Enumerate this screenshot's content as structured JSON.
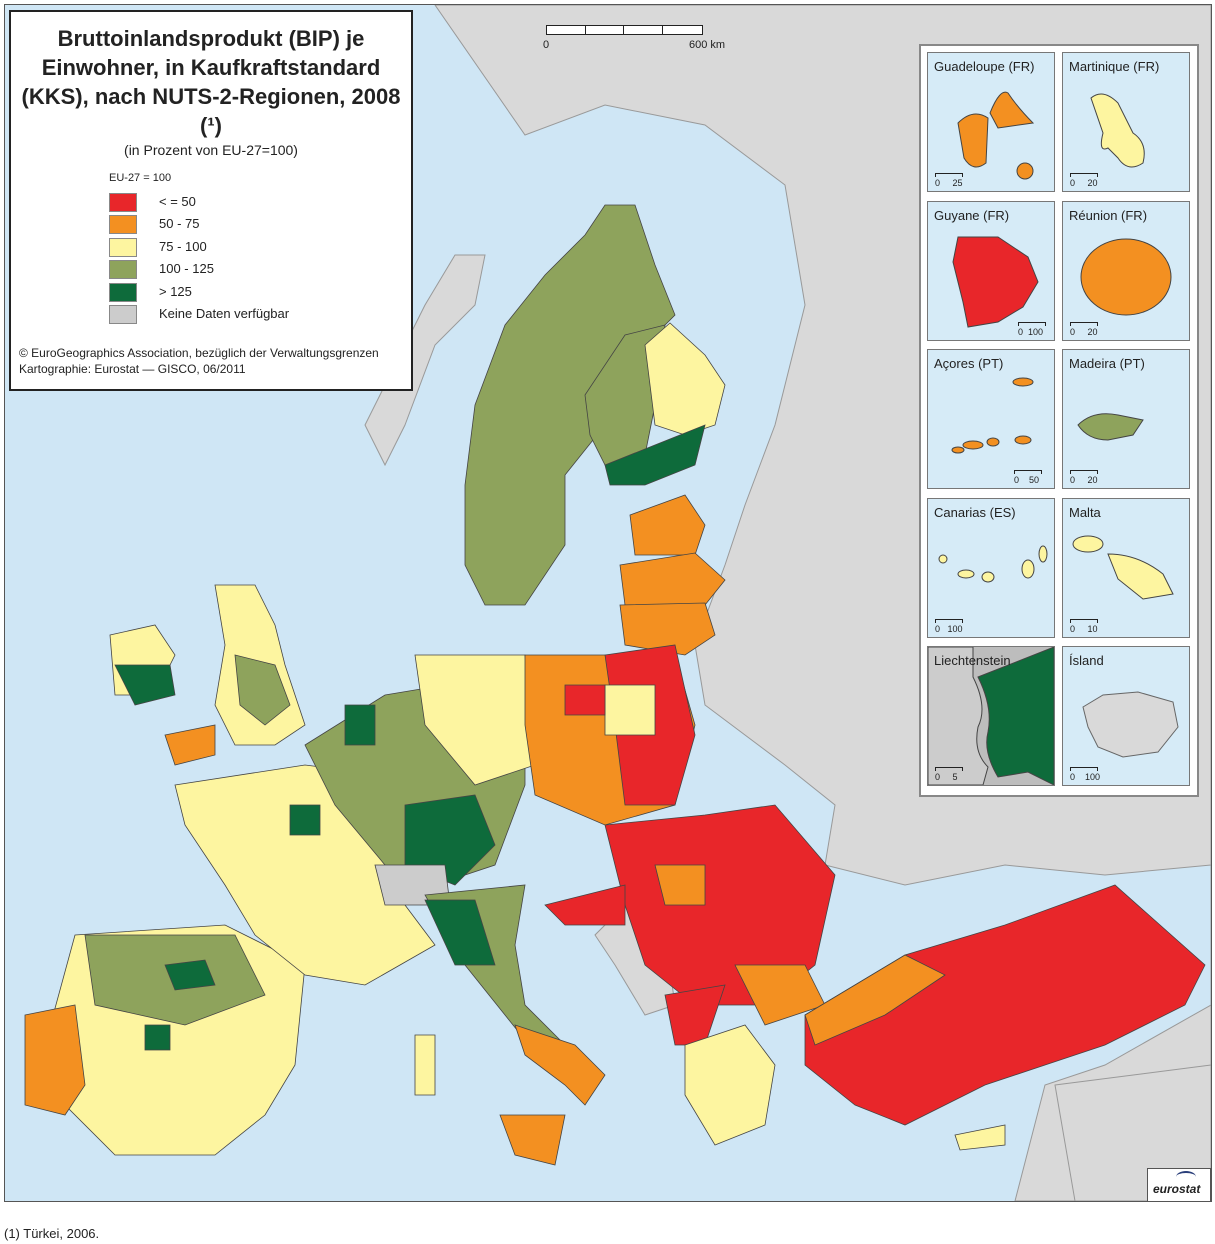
{
  "title": "Bruttoinlandsprodukt (BIP) je Einwohner, in Kaufkraftstandard (KKS), nach NUTS-2-Regionen, 2008 (¹)",
  "subtitle": "(in Prozent von EU-27=100)",
  "legend": {
    "basis": "EU-27 = 100",
    "items": [
      {
        "label": "< = 50",
        "color": "#e8262a"
      },
      {
        "label": "50 - 75",
        "color": "#f39021"
      },
      {
        "label": "75 - 100",
        "color": "#fdf5a0"
      },
      {
        "label": "100 - 125",
        "color": "#8ea35c"
      },
      {
        "label": "> 125",
        "color": "#0e6b3b"
      },
      {
        "label": "Keine Daten verfügbar",
        "color": "#cccccc"
      }
    ]
  },
  "credits": {
    "line1": "© EuroGeographics Association, bezüglich der Verwaltungsgrenzen",
    "line2": "Kartographie: Eurostat — GISCO, 06/2011"
  },
  "scale": {
    "start": "0",
    "end": "600 km"
  },
  "insets": [
    {
      "name": "Guadeloupe (FR)",
      "scale_start": "0",
      "scale_end": "25",
      "class": "50 - 75"
    },
    {
      "name": "Martinique (FR)",
      "scale_start": "0",
      "scale_end": "20",
      "class": "75 - 100"
    },
    {
      "name": "Guyane (FR)",
      "scale_start": "0",
      "scale_end": "100",
      "class": "< = 50"
    },
    {
      "name": "Réunion (FR)",
      "scale_start": "0",
      "scale_end": "20",
      "class": "50 - 75"
    },
    {
      "name": "Açores (PT)",
      "scale_start": "0",
      "scale_end": "50",
      "class": "50 - 75"
    },
    {
      "name": "Madeira (PT)",
      "scale_start": "0",
      "scale_end": "20",
      "class": "100 - 125"
    },
    {
      "name": "Canarias (ES)",
      "scale_start": "0",
      "scale_end": "100",
      "class": "75 - 100"
    },
    {
      "name": "Malta",
      "scale_start": "0",
      "scale_end": "10",
      "class": "75 - 100"
    },
    {
      "name": "Liechtenstein",
      "scale_start": "0",
      "scale_end": "5",
      "class": "> 125"
    },
    {
      "name": "Ísland",
      "scale_start": "0",
      "scale_end": "100",
      "class": "Keine Daten verfügbar"
    }
  ],
  "logo": "eurostat",
  "footnote": "(1) Türkei, 2006.",
  "colors": {
    "sea": "#cfe6f5",
    "non_eu_land": "#d9d9d9",
    "border": "#333333"
  }
}
